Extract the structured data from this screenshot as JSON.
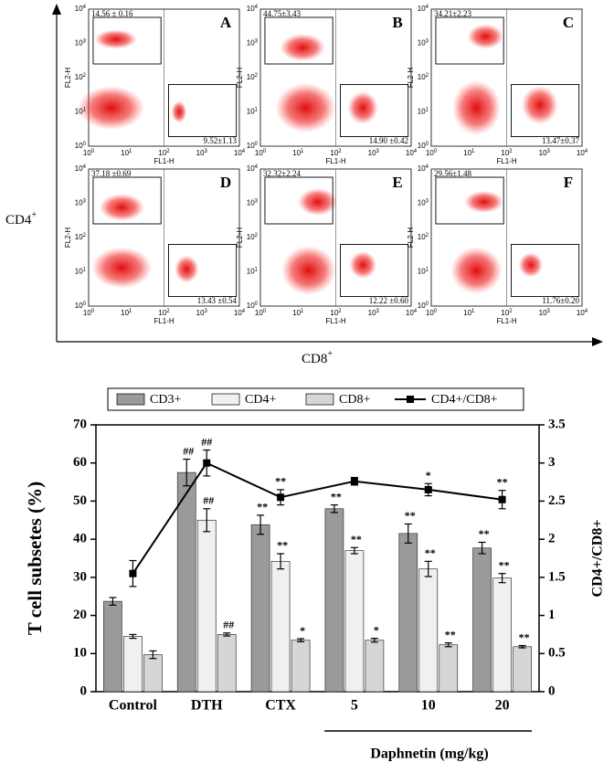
{
  "flow": {
    "y_label": {
      "base": "CD4",
      "sup": "+"
    },
    "x_label": {
      "base": "CD8",
      "sup": "+"
    },
    "panel_x_label": "FL1-H",
    "panel_y_label": "FL2-H",
    "tick_labels": [
      {
        "base": "10",
        "exp": "0"
      },
      {
        "base": "10",
        "exp": "1"
      },
      {
        "base": "10",
        "exp": "2"
      },
      {
        "base": "10",
        "exp": "3"
      },
      {
        "base": "10",
        "exp": "4"
      }
    ],
    "panels": [
      {
        "letter": "A",
        "upper": "14.56 ± 0.16",
        "lower": "9.52±1.13"
      },
      {
        "letter": "B",
        "upper": "44.75±3.43",
        "lower": "14.90 ±0.42"
      },
      {
        "letter": "C",
        "upper": "34.21±2.23",
        "lower": "13.47±0.37"
      },
      {
        "letter": "D",
        "upper": "37.18 ±0.69",
        "lower": "13.43 ±0.54"
      },
      {
        "letter": "E",
        "upper": "32.32±2.24",
        "lower": "12.22 ±0.60"
      },
      {
        "letter": "F",
        "upper": "29.56±1.48",
        "lower": "11.76±0.20"
      }
    ]
  },
  "chart_data": {
    "type": "bar",
    "categories": [
      "Control",
      "DTH",
      "CTX",
      "5",
      "10",
      "20"
    ],
    "group_label": "Daphnetin (mg/kg)",
    "ylabel": "T cell subsetes (%)",
    "y2label": "CD4+/CD8+",
    "ylim": [
      0,
      70
    ],
    "yticks": [
      0,
      10,
      20,
      30,
      40,
      50,
      60,
      70
    ],
    "y2lim": [
      0,
      3.5
    ],
    "y2ticks": [
      0,
      0.5,
      1,
      1.5,
      2,
      2.5,
      3,
      3.5
    ],
    "series": [
      {
        "name": "CD3+",
        "color": "#9a9a9a",
        "values": [
          23.7,
          57.5,
          43.8,
          48,
          41.5,
          37.7
        ],
        "errors": [
          1,
          3.5,
          2.5,
          1,
          2.5,
          1.5
        ],
        "annotations": [
          null,
          "##",
          "**",
          "**",
          "**",
          "**"
        ]
      },
      {
        "name": "CD4+",
        "color": "#f0f0f0",
        "values": [
          14.5,
          45,
          34.2,
          37,
          32.2,
          29.8
        ],
        "errors": [
          0.5,
          3,
          2,
          0.8,
          2,
          1.2
        ],
        "annotations": [
          null,
          "##",
          "**",
          "**",
          "**",
          "**"
        ]
      },
      {
        "name": "CD8+",
        "color": "#d6d6d6",
        "values": [
          9.7,
          15,
          13.5,
          13.5,
          12.3,
          11.8
        ],
        "errors": [
          1,
          0.4,
          0.4,
          0.5,
          0.5,
          0.3
        ],
        "annotations": [
          null,
          "##",
          "*",
          "*",
          "**",
          "**"
        ]
      },
      {
        "name": "CD4+/CD8+",
        "type": "line",
        "axis": "y2",
        "color": "#000000",
        "values": [
          1.55,
          3.0,
          2.55,
          2.76,
          2.65,
          2.52
        ],
        "errors": [
          0.17,
          0.17,
          0.1,
          0.05,
          0.08,
          0.12
        ],
        "annotations": [
          null,
          "##",
          "**",
          null,
          "*",
          "**"
        ]
      }
    ]
  }
}
